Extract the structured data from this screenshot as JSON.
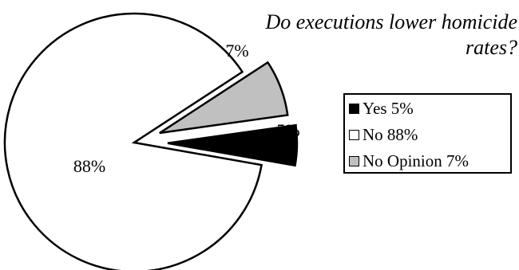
{
  "chart_data": {
    "type": "pie",
    "title": "Do executions lower homicide rates?",
    "slices": [
      {
        "label": "Yes",
        "value": 5,
        "data_label": "5%",
        "legend": "Yes 5%",
        "color": "#000000",
        "exploded": true
      },
      {
        "label": "No",
        "value": 88,
        "data_label": "88%",
        "legend": "No 88%",
        "color": "#ffffff",
        "exploded": false
      },
      {
        "label": "No Opinion",
        "value": 7,
        "data_label": "7%",
        "legend": "No Opinion 7%",
        "color": "#c0c0c0",
        "exploded": true
      }
    ],
    "legend_position": "right"
  }
}
